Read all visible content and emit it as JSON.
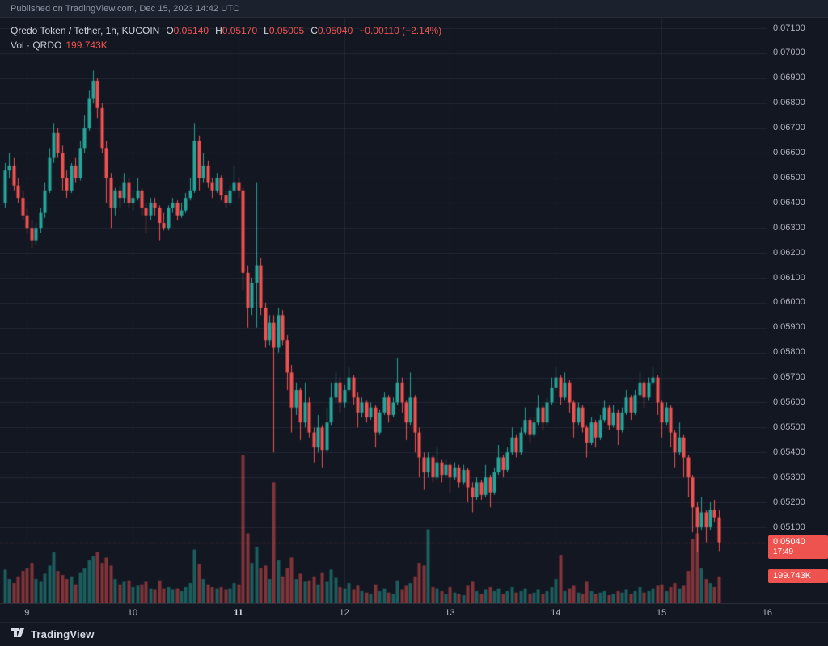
{
  "meta": {
    "published_text": "Published on TradingView.com, Dec 15, 2023 14:42 UTC"
  },
  "legend": {
    "title": "Qredo Token / Tether, 1h, KUCOIN",
    "ohlc": [
      {
        "label": "O",
        "value": "0.05140"
      },
      {
        "label": "H",
        "value": "0.05170"
      },
      {
        "label": "L",
        "value": "0.05005"
      },
      {
        "label": "C",
        "value": "0.05040"
      }
    ],
    "change": "−0.00110 (−2.14%)",
    "volume_row": {
      "label": "Vol · QRDO",
      "value": "199.743K"
    }
  },
  "price_axis": {
    "labels": [
      "0.07100",
      "0.07000",
      "0.06900",
      "0.06800",
      "0.06700",
      "0.06600",
      "0.06500",
      "0.06400",
      "0.06300",
      "0.06200",
      "0.06100",
      "0.06000",
      "0.05900",
      "0.05800",
      "0.05700",
      "0.05600",
      "0.05500",
      "0.05400",
      "0.05300",
      "0.05200",
      "0.05100"
    ],
    "last_price_badge": {
      "price": "0.05040",
      "countdown": "17:49"
    },
    "volume_badge": "199.743K"
  },
  "time_axis": {
    "labels": [
      {
        "text": "9",
        "emphasis": false
      },
      {
        "text": "10",
        "emphasis": false
      },
      {
        "text": "11",
        "emphasis": true
      },
      {
        "text": "12",
        "emphasis": false
      },
      {
        "text": "13",
        "emphasis": false
      },
      {
        "text": "14",
        "emphasis": false
      },
      {
        "text": "15",
        "emphasis": false
      },
      {
        "text": "16",
        "emphasis": false
      }
    ]
  },
  "footer": {
    "brand": "TradingView"
  },
  "colors": {
    "background": "#131722",
    "topbar": "#1c212e",
    "up": "#26a69a",
    "down": "#ef5350",
    "grid": "rgba(54,60,78,0.40)",
    "axis_text": "#b2b5be",
    "text": "#d1d4dc",
    "badge": "#ef5350",
    "border": "#2a2e39"
  },
  "chart_data": {
    "type": "candlestick",
    "symbol": "Qredo Token / Tether",
    "interval": "1h",
    "exchange": "KUCOIN",
    "price_axis_min": 0.051,
    "price_axis_max": 0.071,
    "price_step": 0.001,
    "last_price": 0.0504,
    "last_change": -0.0011,
    "last_change_pct": -2.14,
    "volume_unit": "K",
    "x_days": [
      9,
      10,
      11,
      12,
      13,
      14,
      15,
      16
    ],
    "candles_per_day": 24,
    "first_day_label_index": 5,
    "candles": [
      [
        0.064,
        0.0656,
        0.0638,
        0.0653,
        250
      ],
      [
        0.0653,
        0.066,
        0.065,
        0.0655,
        180
      ],
      [
        0.0655,
        0.0658,
        0.0645,
        0.0647,
        150
      ],
      [
        0.0647,
        0.065,
        0.064,
        0.0642,
        200
      ],
      [
        0.0642,
        0.0645,
        0.0633,
        0.0635,
        240
      ],
      [
        0.0635,
        0.0638,
        0.0628,
        0.063,
        260
      ],
      [
        0.063,
        0.0633,
        0.0622,
        0.0625,
        300
      ],
      [
        0.0625,
        0.0632,
        0.0623,
        0.063,
        180
      ],
      [
        0.063,
        0.0638,
        0.0628,
        0.0636,
        160
      ],
      [
        0.0636,
        0.0648,
        0.0634,
        0.0645,
        220
      ],
      [
        0.0645,
        0.0662,
        0.0644,
        0.0658,
        280
      ],
      [
        0.0658,
        0.0672,
        0.0656,
        0.0668,
        380
      ],
      [
        0.0668,
        0.067,
        0.0658,
        0.066,
        240
      ],
      [
        0.066,
        0.0663,
        0.0645,
        0.065,
        210
      ],
      [
        0.065,
        0.0653,
        0.0642,
        0.0645,
        180
      ],
      [
        0.0645,
        0.0656,
        0.0644,
        0.0655,
        200
      ],
      [
        0.0655,
        0.0658,
        0.0648,
        0.065,
        140
      ],
      [
        0.065,
        0.0665,
        0.0649,
        0.0662,
        230
      ],
      [
        0.0662,
        0.0675,
        0.066,
        0.067,
        260
      ],
      [
        0.067,
        0.0685,
        0.0669,
        0.0682,
        320
      ],
      [
        0.0682,
        0.0693,
        0.068,
        0.0689,
        350
      ],
      [
        0.0689,
        0.069,
        0.0674,
        0.0678,
        380
      ],
      [
        0.0678,
        0.068,
        0.066,
        0.0662,
        300
      ],
      [
        0.0662,
        0.0665,
        0.064,
        0.065,
        340
      ],
      [
        0.065,
        0.0652,
        0.063,
        0.0638,
        280
      ],
      [
        0.0638,
        0.0646,
        0.0635,
        0.0645,
        180
      ],
      [
        0.0645,
        0.0647,
        0.0638,
        0.0642,
        140
      ],
      [
        0.0642,
        0.0652,
        0.064,
        0.0648,
        160
      ],
      [
        0.0648,
        0.065,
        0.0638,
        0.064,
        170
      ],
      [
        0.064,
        0.0645,
        0.0637,
        0.0642,
        120
      ],
      [
        0.0642,
        0.065,
        0.0641,
        0.0645,
        130
      ],
      [
        0.0645,
        0.0646,
        0.0635,
        0.0638,
        140
      ],
      [
        0.0638,
        0.064,
        0.0628,
        0.0635,
        160
      ],
      [
        0.0635,
        0.0642,
        0.0633,
        0.064,
        110
      ],
      [
        0.064,
        0.0642,
        0.0635,
        0.0638,
        100
      ],
      [
        0.0638,
        0.0639,
        0.0625,
        0.0632,
        170
      ],
      [
        0.0632,
        0.0636,
        0.0629,
        0.063,
        110
      ],
      [
        0.063,
        0.0639,
        0.0629,
        0.0638,
        120
      ],
      [
        0.0638,
        0.0642,
        0.0636,
        0.064,
        100
      ],
      [
        0.064,
        0.0641,
        0.0633,
        0.0635,
        110
      ],
      [
        0.0635,
        0.064,
        0.0634,
        0.0637,
        90
      ],
      [
        0.0637,
        0.0644,
        0.0636,
        0.0642,
        120
      ],
      [
        0.0642,
        0.065,
        0.0641,
        0.0645,
        150
      ],
      [
        0.0645,
        0.0672,
        0.0644,
        0.0665,
        400
      ],
      [
        0.0665,
        0.0667,
        0.0645,
        0.065,
        290
      ],
      [
        0.065,
        0.066,
        0.0648,
        0.0655,
        180
      ],
      [
        0.0655,
        0.0657,
        0.0646,
        0.0648,
        140
      ],
      [
        0.0648,
        0.065,
        0.0642,
        0.0645,
        120
      ],
      [
        0.0645,
        0.0652,
        0.0644,
        0.065,
        110
      ],
      [
        0.065,
        0.0651,
        0.0641,
        0.0643,
        120
      ],
      [
        0.0643,
        0.0645,
        0.0638,
        0.064,
        100
      ],
      [
        0.064,
        0.0647,
        0.0639,
        0.0645,
        110
      ],
      [
        0.0645,
        0.0655,
        0.0644,
        0.0648,
        150
      ],
      [
        0.0648,
        0.065,
        0.0642,
        0.0645,
        140
      ],
      [
        0.0645,
        0.0646,
        0.0605,
        0.0612,
        1100
      ],
      [
        0.0612,
        0.0615,
        0.059,
        0.0598,
        520
      ],
      [
        0.0598,
        0.061,
        0.0595,
        0.0608,
        300
      ],
      [
        0.0608,
        0.0648,
        0.059,
        0.0615,
        420
      ],
      [
        0.0615,
        0.0618,
        0.0595,
        0.0598,
        260
      ],
      [
        0.0598,
        0.06,
        0.0582,
        0.0585,
        280
      ],
      [
        0.0585,
        0.0595,
        0.0583,
        0.0592,
        180
      ],
      [
        0.0592,
        0.0595,
        0.054,
        0.0582,
        900
      ],
      [
        0.0582,
        0.0598,
        0.058,
        0.0595,
        320
      ],
      [
        0.0595,
        0.0597,
        0.0583,
        0.0585,
        200
      ],
      [
        0.0585,
        0.0587,
        0.0565,
        0.0572,
        260
      ],
      [
        0.0572,
        0.0575,
        0.0548,
        0.0558,
        340
      ],
      [
        0.0558,
        0.0568,
        0.0555,
        0.0565,
        180
      ],
      [
        0.0565,
        0.0566,
        0.0545,
        0.0552,
        220
      ],
      [
        0.0552,
        0.0568,
        0.055,
        0.056,
        160
      ],
      [
        0.056,
        0.0562,
        0.0546,
        0.0548,
        170
      ],
      [
        0.0548,
        0.055,
        0.0536,
        0.0542,
        200
      ],
      [
        0.0542,
        0.0555,
        0.054,
        0.055,
        140
      ],
      [
        0.055,
        0.0551,
        0.0534,
        0.0541,
        230
      ],
      [
        0.0541,
        0.0558,
        0.054,
        0.0552,
        160
      ],
      [
        0.0552,
        0.0568,
        0.0551,
        0.0562,
        250
      ],
      [
        0.0562,
        0.0572,
        0.056,
        0.0568,
        190
      ],
      [
        0.0568,
        0.057,
        0.0556,
        0.056,
        120
      ],
      [
        0.056,
        0.0567,
        0.0558,
        0.0565,
        110
      ],
      [
        0.0565,
        0.0574,
        0.0564,
        0.057,
        150
      ],
      [
        0.057,
        0.0571,
        0.0559,
        0.0562,
        100
      ],
      [
        0.0562,
        0.0564,
        0.055,
        0.0556,
        130
      ],
      [
        0.0556,
        0.0562,
        0.0554,
        0.056,
        90
      ],
      [
        0.056,
        0.0561,
        0.0552,
        0.0554,
        80
      ],
      [
        0.0554,
        0.056,
        0.0553,
        0.0558,
        70
      ],
      [
        0.0558,
        0.0559,
        0.0542,
        0.0548,
        140
      ],
      [
        0.0548,
        0.0557,
        0.0547,
        0.0556,
        90
      ],
      [
        0.0556,
        0.0564,
        0.0555,
        0.0562,
        110
      ],
      [
        0.0562,
        0.0563,
        0.0552,
        0.0555,
        80
      ],
      [
        0.0555,
        0.0562,
        0.0554,
        0.056,
        70
      ],
      [
        0.056,
        0.0578,
        0.0559,
        0.0568,
        170
      ],
      [
        0.0568,
        0.057,
        0.0556,
        0.056,
        100
      ],
      [
        0.056,
        0.0561,
        0.0545,
        0.0552,
        130
      ],
      [
        0.0552,
        0.0572,
        0.0551,
        0.0562,
        150
      ],
      [
        0.0562,
        0.0563,
        0.054,
        0.0548,
        200
      ],
      [
        0.0548,
        0.055,
        0.053,
        0.0538,
        300
      ],
      [
        0.0538,
        0.054,
        0.0525,
        0.0532,
        280
      ],
      [
        0.0532,
        0.054,
        0.053,
        0.0538,
        550
      ],
      [
        0.0538,
        0.0539,
        0.0528,
        0.053,
        120
      ],
      [
        0.053,
        0.0542,
        0.0529,
        0.0536,
        110
      ],
      [
        0.0536,
        0.0537,
        0.0528,
        0.0531,
        90
      ],
      [
        0.0531,
        0.0537,
        0.053,
        0.0535,
        70
      ],
      [
        0.0535,
        0.0536,
        0.0524,
        0.053,
        120
      ],
      [
        0.053,
        0.0536,
        0.0529,
        0.0534,
        80
      ],
      [
        0.0534,
        0.0535,
        0.0526,
        0.0528,
        70
      ],
      [
        0.0528,
        0.0535,
        0.0527,
        0.0533,
        60
      ],
      [
        0.0533,
        0.0534,
        0.052,
        0.0526,
        130
      ],
      [
        0.0526,
        0.0528,
        0.0516,
        0.0522,
        160
      ],
      [
        0.0522,
        0.053,
        0.0521,
        0.0528,
        90
      ],
      [
        0.0528,
        0.0529,
        0.0521,
        0.0523,
        70
      ],
      [
        0.0523,
        0.0535,
        0.0522,
        0.053,
        100
      ],
      [
        0.053,
        0.0531,
        0.0518,
        0.0524,
        120
      ],
      [
        0.0524,
        0.0534,
        0.0523,
        0.0532,
        90
      ],
      [
        0.0532,
        0.0543,
        0.0531,
        0.0538,
        110
      ],
      [
        0.0538,
        0.0539,
        0.053,
        0.0533,
        70
      ],
      [
        0.0533,
        0.0542,
        0.0532,
        0.054,
        90
      ],
      [
        0.054,
        0.055,
        0.0539,
        0.0546,
        120
      ],
      [
        0.0546,
        0.0547,
        0.0538,
        0.054,
        80
      ],
      [
        0.054,
        0.055,
        0.0539,
        0.0548,
        90
      ],
      [
        0.0548,
        0.0558,
        0.0547,
        0.0553,
        110
      ],
      [
        0.0553,
        0.0554,
        0.0544,
        0.0547,
        70
      ],
      [
        0.0547,
        0.0554,
        0.0546,
        0.0552,
        80
      ],
      [
        0.0552,
        0.0563,
        0.0551,
        0.0558,
        100
      ],
      [
        0.0558,
        0.0559,
        0.0549,
        0.0552,
        70
      ],
      [
        0.0552,
        0.0562,
        0.0551,
        0.056,
        90
      ],
      [
        0.056,
        0.057,
        0.0559,
        0.0566,
        120
      ],
      [
        0.0566,
        0.0574,
        0.0565,
        0.057,
        180
      ],
      [
        0.057,
        0.0571,
        0.0559,
        0.0562,
        360
      ],
      [
        0.0562,
        0.0572,
        0.0561,
        0.0568,
        90
      ],
      [
        0.0568,
        0.0569,
        0.0556,
        0.056,
        110
      ],
      [
        0.056,
        0.0561,
        0.0546,
        0.0552,
        130
      ],
      [
        0.0552,
        0.056,
        0.0551,
        0.0558,
        80
      ],
      [
        0.0558,
        0.0559,
        0.0548,
        0.055,
        70
      ],
      [
        0.055,
        0.0551,
        0.0538,
        0.0544,
        160
      ],
      [
        0.0544,
        0.0554,
        0.0543,
        0.0552,
        90
      ],
      [
        0.0552,
        0.0553,
        0.0542,
        0.0546,
        70
      ],
      [
        0.0546,
        0.0555,
        0.0545,
        0.0553,
        80
      ],
      [
        0.0553,
        0.0561,
        0.0552,
        0.0558,
        90
      ],
      [
        0.0558,
        0.0559,
        0.0549,
        0.0551,
        60
      ],
      [
        0.0551,
        0.0559,
        0.055,
        0.0556,
        70
      ],
      [
        0.0556,
        0.0557,
        0.0543,
        0.0549,
        90
      ],
      [
        0.0549,
        0.0558,
        0.0548,
        0.0556,
        80
      ],
      [
        0.0556,
        0.0565,
        0.0555,
        0.0562,
        100
      ],
      [
        0.0562,
        0.0563,
        0.0553,
        0.0556,
        70
      ],
      [
        0.0556,
        0.0565,
        0.0555,
        0.0563,
        90
      ],
      [
        0.0563,
        0.0572,
        0.0562,
        0.0568,
        120
      ],
      [
        0.0568,
        0.0569,
        0.0558,
        0.0562,
        80
      ],
      [
        0.0562,
        0.057,
        0.0561,
        0.0568,
        90
      ],
      [
        0.0568,
        0.0574,
        0.0567,
        0.057,
        110
      ],
      [
        0.057,
        0.0571,
        0.0555,
        0.056,
        130
      ],
      [
        0.056,
        0.0561,
        0.0546,
        0.0552,
        140
      ],
      [
        0.0552,
        0.056,
        0.0551,
        0.0558,
        90
      ],
      [
        0.0558,
        0.0559,
        0.0542,
        0.0548,
        120
      ],
      [
        0.0548,
        0.0549,
        0.0534,
        0.054,
        150
      ],
      [
        0.054,
        0.0552,
        0.0539,
        0.0546,
        110
      ],
      [
        0.0546,
        0.0547,
        0.053,
        0.0538,
        130
      ],
      [
        0.0538,
        0.0539,
        0.0522,
        0.053,
        240
      ],
      [
        0.053,
        0.0531,
        0.0508,
        0.0518,
        480
      ],
      [
        0.0518,
        0.052,
        0.05,
        0.051,
        520
      ],
      [
        0.051,
        0.0522,
        0.0509,
        0.0516,
        260
      ],
      [
        0.0516,
        0.0517,
        0.0504,
        0.051,
        180
      ],
      [
        0.051,
        0.052,
        0.0509,
        0.0517,
        150
      ],
      [
        0.0517,
        0.0521,
        0.0512,
        0.0514,
        120
      ],
      [
        0.0514,
        0.0517,
        0.05005,
        0.0504,
        199.743
      ]
    ]
  }
}
